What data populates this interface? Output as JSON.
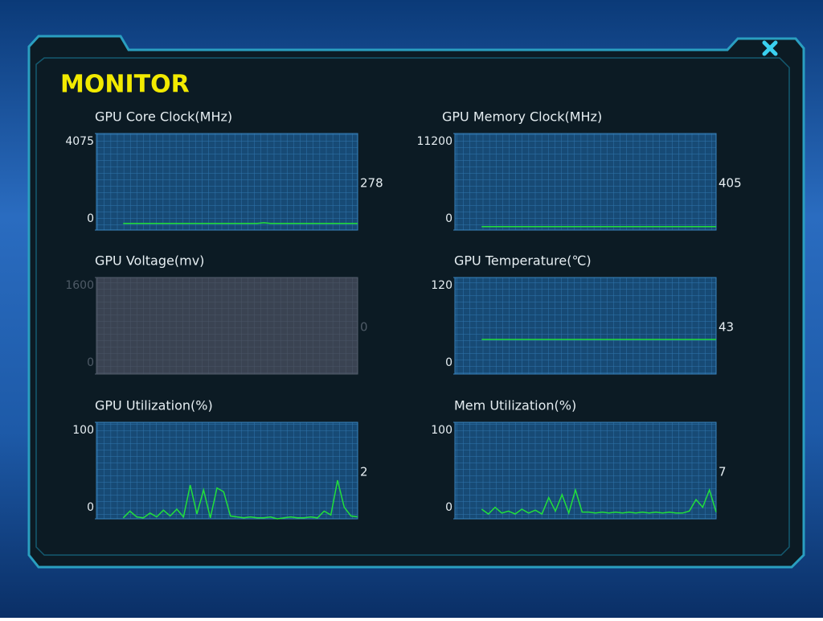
{
  "window": {
    "title": "MONITOR"
  },
  "chart_data": [
    {
      "type": "line",
      "title": "GPU Core Clock(MHz)",
      "ylim": [
        0,
        4075
      ],
      "yticks": [
        0,
        4075
      ],
      "current_value": 278,
      "enabled": true,
      "color": "#22e03a",
      "values": [
        null,
        null,
        null,
        null,
        278,
        278,
        278,
        278,
        278,
        278,
        278,
        278,
        278,
        278,
        278,
        278,
        278,
        278,
        278,
        278,
        278,
        278,
        278,
        278,
        278,
        310,
        278,
        278,
        278,
        278,
        278,
        278,
        278,
        278,
        278,
        278,
        278,
        278,
        278,
        278
      ]
    },
    {
      "type": "line",
      "title": "GPU Memory Clock(MHz)",
      "ylim": [
        0,
        11200
      ],
      "yticks": [
        0,
        11200
      ],
      "current_value": 405,
      "enabled": true,
      "color": "#22e03a",
      "values": [
        null,
        null,
        null,
        null,
        405,
        405,
        405,
        405,
        405,
        405,
        405,
        405,
        405,
        405,
        405,
        405,
        405,
        405,
        405,
        405,
        405,
        405,
        405,
        405,
        405,
        405,
        405,
        405,
        405,
        405,
        405,
        405,
        405,
        405,
        405,
        405,
        405,
        405,
        405,
        405
      ]
    },
    {
      "type": "line",
      "title": "GPU Voltage(mv)",
      "ylim": [
        0,
        1600
      ],
      "yticks": [
        0,
        1600
      ],
      "current_value": 0,
      "enabled": false,
      "color": "#22e03a",
      "values": []
    },
    {
      "type": "line",
      "title": "GPU Temperature(℃)",
      "ylim": [
        0,
        120
      ],
      "yticks": [
        0,
        120
      ],
      "current_value": 43,
      "enabled": true,
      "color": "#22e03a",
      "values": [
        null,
        null,
        null,
        null,
        43,
        43,
        43,
        43,
        43,
        43,
        43,
        43,
        43,
        43,
        43,
        43,
        43,
        43,
        43,
        43,
        43,
        43,
        43,
        43,
        43,
        43,
        43,
        43,
        43,
        43,
        43,
        43,
        43,
        43,
        43,
        43,
        43,
        43,
        43,
        43
      ]
    },
    {
      "type": "line",
      "title": "GPU Utilization(%)",
      "ylim": [
        0,
        100
      ],
      "yticks": [
        0,
        100
      ],
      "current_value": 2,
      "enabled": true,
      "color": "#22e03a",
      "values": [
        null,
        null,
        null,
        null,
        1,
        8,
        2,
        1,
        6,
        2,
        9,
        3,
        10,
        2,
        35,
        5,
        30,
        1,
        32,
        28,
        3,
        2,
        1,
        2,
        1,
        1,
        2,
        0,
        1,
        2,
        1,
        1,
        2,
        1,
        8,
        4,
        40,
        12,
        3,
        2
      ]
    },
    {
      "type": "line",
      "title": "Mem Utilization(%)",
      "ylim": [
        0,
        100
      ],
      "yticks": [
        0,
        100
      ],
      "current_value": 7,
      "enabled": true,
      "color": "#22e03a",
      "values": [
        null,
        null,
        null,
        null,
        10,
        5,
        12,
        6,
        8,
        5,
        10,
        6,
        9,
        5,
        22,
        8,
        25,
        6,
        30,
        7,
        7,
        6,
        7,
        6,
        7,
        6,
        7,
        6,
        7,
        6,
        7,
        6,
        7,
        6,
        6,
        8,
        20,
        12,
        30,
        7
      ]
    }
  ]
}
